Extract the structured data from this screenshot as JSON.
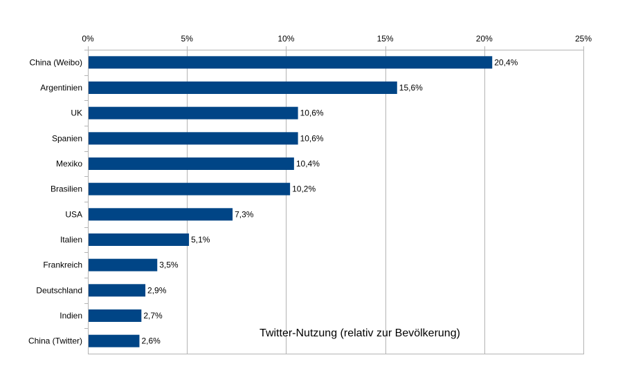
{
  "chart_data": {
    "type": "bar",
    "orientation": "horizontal",
    "title": "Twitter-Nutzung (relativ zur Bevölkerung)",
    "xlabel": "",
    "ylabel": "",
    "xlim": [
      0,
      25
    ],
    "x_ticks": [
      0,
      5,
      10,
      15,
      20,
      25
    ],
    "x_tick_labels": [
      "0%",
      "5%",
      "10%",
      "15%",
      "20%",
      "25%"
    ],
    "x_axis_position": "top",
    "grid": true,
    "legend": "none",
    "categories": [
      "China (Weibo)",
      "Argentinien",
      "UK",
      "Spanien",
      "Mexiko",
      "Brasilien",
      "USA",
      "Italien",
      "Frankreich",
      "Deutschland",
      "Indien",
      "China (Twitter)"
    ],
    "values": [
      20.4,
      15.6,
      10.6,
      10.6,
      10.4,
      10.2,
      7.3,
      5.1,
      3.5,
      2.9,
      2.7,
      2.6
    ],
    "data_labels": [
      "20,4%",
      "15,6%",
      "10,6%",
      "10,6%",
      "10,4%",
      "10,2%",
      "7,3%",
      "5,1%",
      "3,5%",
      "2,9%",
      "2,7%",
      "2,6%"
    ],
    "colors": {
      "bar": "#004586",
      "grid": "#b3b3b3",
      "axis": "#b3b3b3"
    }
  }
}
